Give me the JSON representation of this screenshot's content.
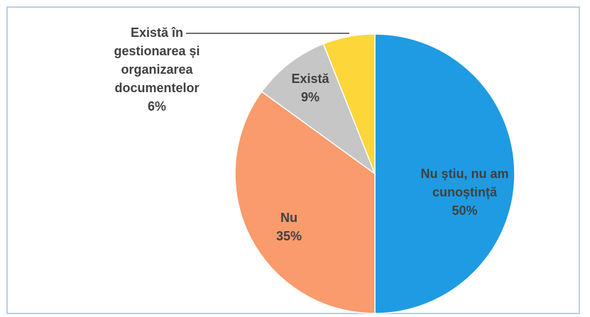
{
  "chart_data": {
    "type": "pie",
    "categories": [
      "Nu știu, nu am cunoștință",
      "Nu",
      "Există",
      "Există în gestionarea și organizarea documentelor"
    ],
    "values": [
      50,
      35,
      9,
      6
    ],
    "value_labels": [
      "50%",
      "35%",
      "9%",
      "6%"
    ],
    "colors": [
      "#1e9be3",
      "#f99b6c",
      "#c6c6c6",
      "#fdd63a"
    ]
  }
}
